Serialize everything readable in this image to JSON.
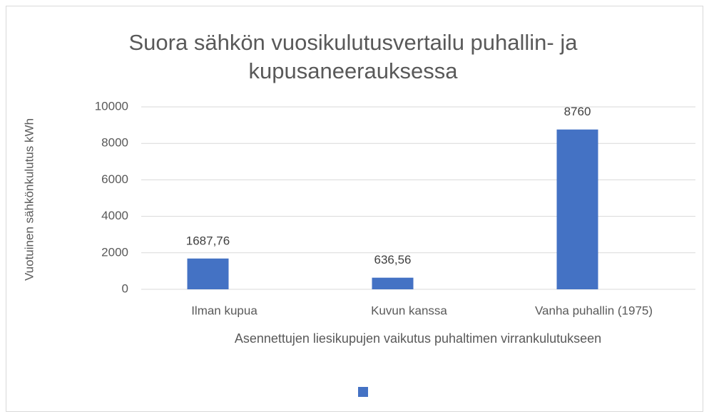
{
  "chart_data": {
    "type": "bar",
    "title": "Suora sähkön vuosikulutusvertailu puhallin- ja kupusaneerauksessa",
    "x_label": "Asennettujen liesikupujen vaikutus puhaltimen virrankulutukseen",
    "y_label": "Vuotuinen sähkönkulutus kWh",
    "categories": [
      "Ilman kupua",
      "Kuvun kanssa",
      "Vanha puhallin (1975)"
    ],
    "values": [
      1687.76,
      636.56,
      8760
    ],
    "value_labels": [
      "1687,76",
      "636,56",
      "8760"
    ],
    "color": "#4472c4",
    "ylim": [
      0,
      10000
    ],
    "yticks": [
      0,
      2000,
      4000,
      6000,
      8000,
      10000
    ],
    "grid": true
  }
}
